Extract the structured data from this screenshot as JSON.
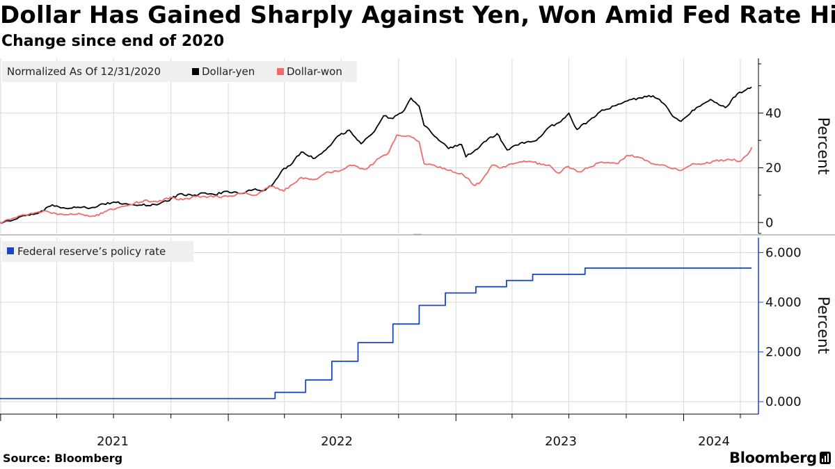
{
  "chart_data": [
    {
      "type": "line",
      "title": "Dollar Has Gained Sharply Against Yen, Won Amid Fed Rate Hikes",
      "subtitle": "Change since end of 2020",
      "legend_title": "Normalized As Of 12/31/2020",
      "ylabel": "Percent",
      "ylim": [
        -4,
        60
      ],
      "yticks": [
        0,
        20,
        40
      ],
      "xlim": [
        "2020-12-31",
        "2024-04-30"
      ],
      "xticks": [
        "2021",
        "2022",
        "2023",
        "2024"
      ],
      "grid": true,
      "legend_position": "top-left",
      "series": [
        {
          "name": "Dollar-yen",
          "color": "#000000",
          "points": [
            [
              "2020-12-31",
              0
            ],
            [
              "2021-01-20",
              0.8
            ],
            [
              "2021-02-10",
              2.5
            ],
            [
              "2021-03-01",
              3.3
            ],
            [
              "2021-03-25",
              6.5
            ],
            [
              "2021-04-15",
              5.2
            ],
            [
              "2021-05-05",
              5.6
            ],
            [
              "2021-05-25",
              5.3
            ],
            [
              "2021-06-15",
              6.8
            ],
            [
              "2021-07-05",
              7.3
            ],
            [
              "2021-07-25",
              6.6
            ],
            [
              "2021-08-15",
              6.3
            ],
            [
              "2021-09-05",
              6.6
            ],
            [
              "2021-09-25",
              7.8
            ],
            [
              "2021-10-15",
              10.5
            ],
            [
              "2021-11-05",
              9.8
            ],
            [
              "2021-11-25",
              10.8
            ],
            [
              "2021-12-10",
              10.2
            ],
            [
              "2021-12-31",
              11.4
            ],
            [
              "2022-01-20",
              10.6
            ],
            [
              "2022-02-10",
              12.0
            ],
            [
              "2022-03-01",
              11.8
            ],
            [
              "2022-03-15",
              14.5
            ],
            [
              "2022-03-28",
              19.0
            ],
            [
              "2022-04-10",
              20.8
            ],
            [
              "2022-04-28",
              25.8
            ],
            [
              "2022-05-20",
              23.5
            ],
            [
              "2022-06-10",
              27.5
            ],
            [
              "2022-06-25",
              31.5
            ],
            [
              "2022-07-14",
              33.8
            ],
            [
              "2022-08-02",
              28.8
            ],
            [
              "2022-08-20",
              32.5
            ],
            [
              "2022-09-07",
              39.0
            ],
            [
              "2022-09-22",
              38.0
            ],
            [
              "2022-10-10",
              41.0
            ],
            [
              "2022-10-21",
              45.5
            ],
            [
              "2022-11-03",
              42.5
            ],
            [
              "2022-11-11",
              35.5
            ],
            [
              "2022-12-01",
              31.0
            ],
            [
              "2022-12-20",
              27.0
            ],
            [
              "2023-01-10",
              28.5
            ],
            [
              "2023-01-17",
              24.0
            ],
            [
              "2023-02-01",
              26.5
            ],
            [
              "2023-02-15",
              29.5
            ],
            [
              "2023-03-08",
              32.5
            ],
            [
              "2023-03-24",
              26.5
            ],
            [
              "2023-04-14",
              29.0
            ],
            [
              "2023-05-10",
              30.0
            ],
            [
              "2023-05-31",
              35.0
            ],
            [
              "2023-06-15",
              36.5
            ],
            [
              "2023-07-01",
              40.0
            ],
            [
              "2023-07-14",
              34.0
            ],
            [
              "2023-08-01",
              37.0
            ],
            [
              "2023-08-20",
              40.5
            ],
            [
              "2023-09-15",
              42.8
            ],
            [
              "2023-10-10",
              45.0
            ],
            [
              "2023-11-13",
              46.3
            ],
            [
              "2023-11-30",
              43.5
            ],
            [
              "2023-12-14",
              39.0
            ],
            [
              "2023-12-28",
              37.0
            ],
            [
              "2024-01-15",
              41.0
            ],
            [
              "2024-02-13",
              45.0
            ],
            [
              "2024-03-08",
              42.0
            ],
            [
              "2024-03-27",
              47.0
            ],
            [
              "2024-04-10",
              48.5
            ],
            [
              "2024-04-19",
              49.5
            ]
          ]
        },
        {
          "name": "Dollar-won",
          "color": "#f26a6a",
          "points": [
            [
              "2020-12-31",
              0
            ],
            [
              "2021-01-20",
              1.5
            ],
            [
              "2021-02-15",
              3.0
            ],
            [
              "2021-03-10",
              4.2
            ],
            [
              "2021-04-10",
              3.0
            ],
            [
              "2021-05-10",
              3.0
            ],
            [
              "2021-06-01",
              2.3
            ],
            [
              "2021-06-20",
              4.2
            ],
            [
              "2021-07-10",
              5.5
            ],
            [
              "2021-07-28",
              6.5
            ],
            [
              "2021-08-20",
              8.2
            ],
            [
              "2021-09-10",
              7.5
            ],
            [
              "2021-09-30",
              9.2
            ],
            [
              "2021-10-20",
              8.3
            ],
            [
              "2021-11-10",
              9.5
            ],
            [
              "2021-12-01",
              9.5
            ],
            [
              "2021-12-31",
              9.5
            ],
            [
              "2022-01-25",
              10.8
            ],
            [
              "2022-02-15",
              10.0
            ],
            [
              "2022-03-08",
              13.5
            ],
            [
              "2022-03-31",
              11.5
            ],
            [
              "2022-04-28",
              16.5
            ],
            [
              "2022-05-20",
              15.8
            ],
            [
              "2022-06-10",
              18.5
            ],
            [
              "2022-06-30",
              19.0
            ],
            [
              "2022-07-15",
              21.0
            ],
            [
              "2022-08-10",
              19.5
            ],
            [
              "2022-08-31",
              23.5
            ],
            [
              "2022-09-15",
              25.5
            ],
            [
              "2022-09-28",
              32.0
            ],
            [
              "2022-10-12",
              31.5
            ],
            [
              "2022-10-25",
              31.0
            ],
            [
              "2022-11-03",
              29.5
            ],
            [
              "2022-11-11",
              21.5
            ],
            [
              "2022-11-30",
              20.5
            ],
            [
              "2022-12-20",
              19.0
            ],
            [
              "2023-01-10",
              18.0
            ],
            [
              "2023-02-01",
              13.5
            ],
            [
              "2023-02-10",
              15.0
            ],
            [
              "2023-02-28",
              21.0
            ],
            [
              "2023-03-15",
              20.0
            ],
            [
              "2023-03-31",
              21.5
            ],
            [
              "2023-04-20",
              22.5
            ],
            [
              "2023-05-05",
              22.0
            ],
            [
              "2023-05-31",
              21.0
            ],
            [
              "2023-06-15",
              18.0
            ],
            [
              "2023-06-30",
              20.5
            ],
            [
              "2023-07-18",
              18.5
            ],
            [
              "2023-08-20",
              22.0
            ],
            [
              "2023-09-15",
              21.5
            ],
            [
              "2023-10-04",
              24.5
            ],
            [
              "2023-10-20",
              24.0
            ],
            [
              "2023-11-10",
              21.5
            ],
            [
              "2023-12-01",
              21.0
            ],
            [
              "2023-12-28",
              19.0
            ],
            [
              "2024-01-15",
              21.5
            ],
            [
              "2024-02-01",
              21.5
            ],
            [
              "2024-02-20",
              22.5
            ],
            [
              "2024-03-15",
              23.0
            ],
            [
              "2024-04-02",
              22.5
            ],
            [
              "2024-04-16",
              26.0
            ],
            [
              "2024-04-19",
              27.5
            ]
          ]
        }
      ]
    },
    {
      "type": "line",
      "legend_title": "",
      "ylabel": "Percent",
      "ylim": [
        -0.5,
        6.6
      ],
      "yticks": [
        "0.000",
        "2.000",
        "4.000",
        "6.000"
      ],
      "xlim": [
        "2020-12-31",
        "2024-04-30"
      ],
      "grid": true,
      "legend_position": "top-left",
      "step": true,
      "series": [
        {
          "name": "Federal reserve’s policy rate",
          "color": "#1a45c6",
          "points": [
            [
              "2020-12-31",
              0.125
            ],
            [
              "2022-03-17",
              0.375
            ],
            [
              "2022-05-05",
              0.875
            ],
            [
              "2022-06-16",
              1.625
            ],
            [
              "2022-07-28",
              2.375
            ],
            [
              "2022-09-22",
              3.125
            ],
            [
              "2022-11-03",
              3.875
            ],
            [
              "2022-12-15",
              4.375
            ],
            [
              "2023-02-02",
              4.625
            ],
            [
              "2023-03-23",
              4.875
            ],
            [
              "2023-05-04",
              5.125
            ],
            [
              "2023-07-27",
              5.375
            ],
            [
              "2024-04-19",
              5.375
            ]
          ]
        }
      ]
    }
  ],
  "footer": {
    "source": "Source: Bloomberg",
    "brand": "Bloomberg"
  }
}
